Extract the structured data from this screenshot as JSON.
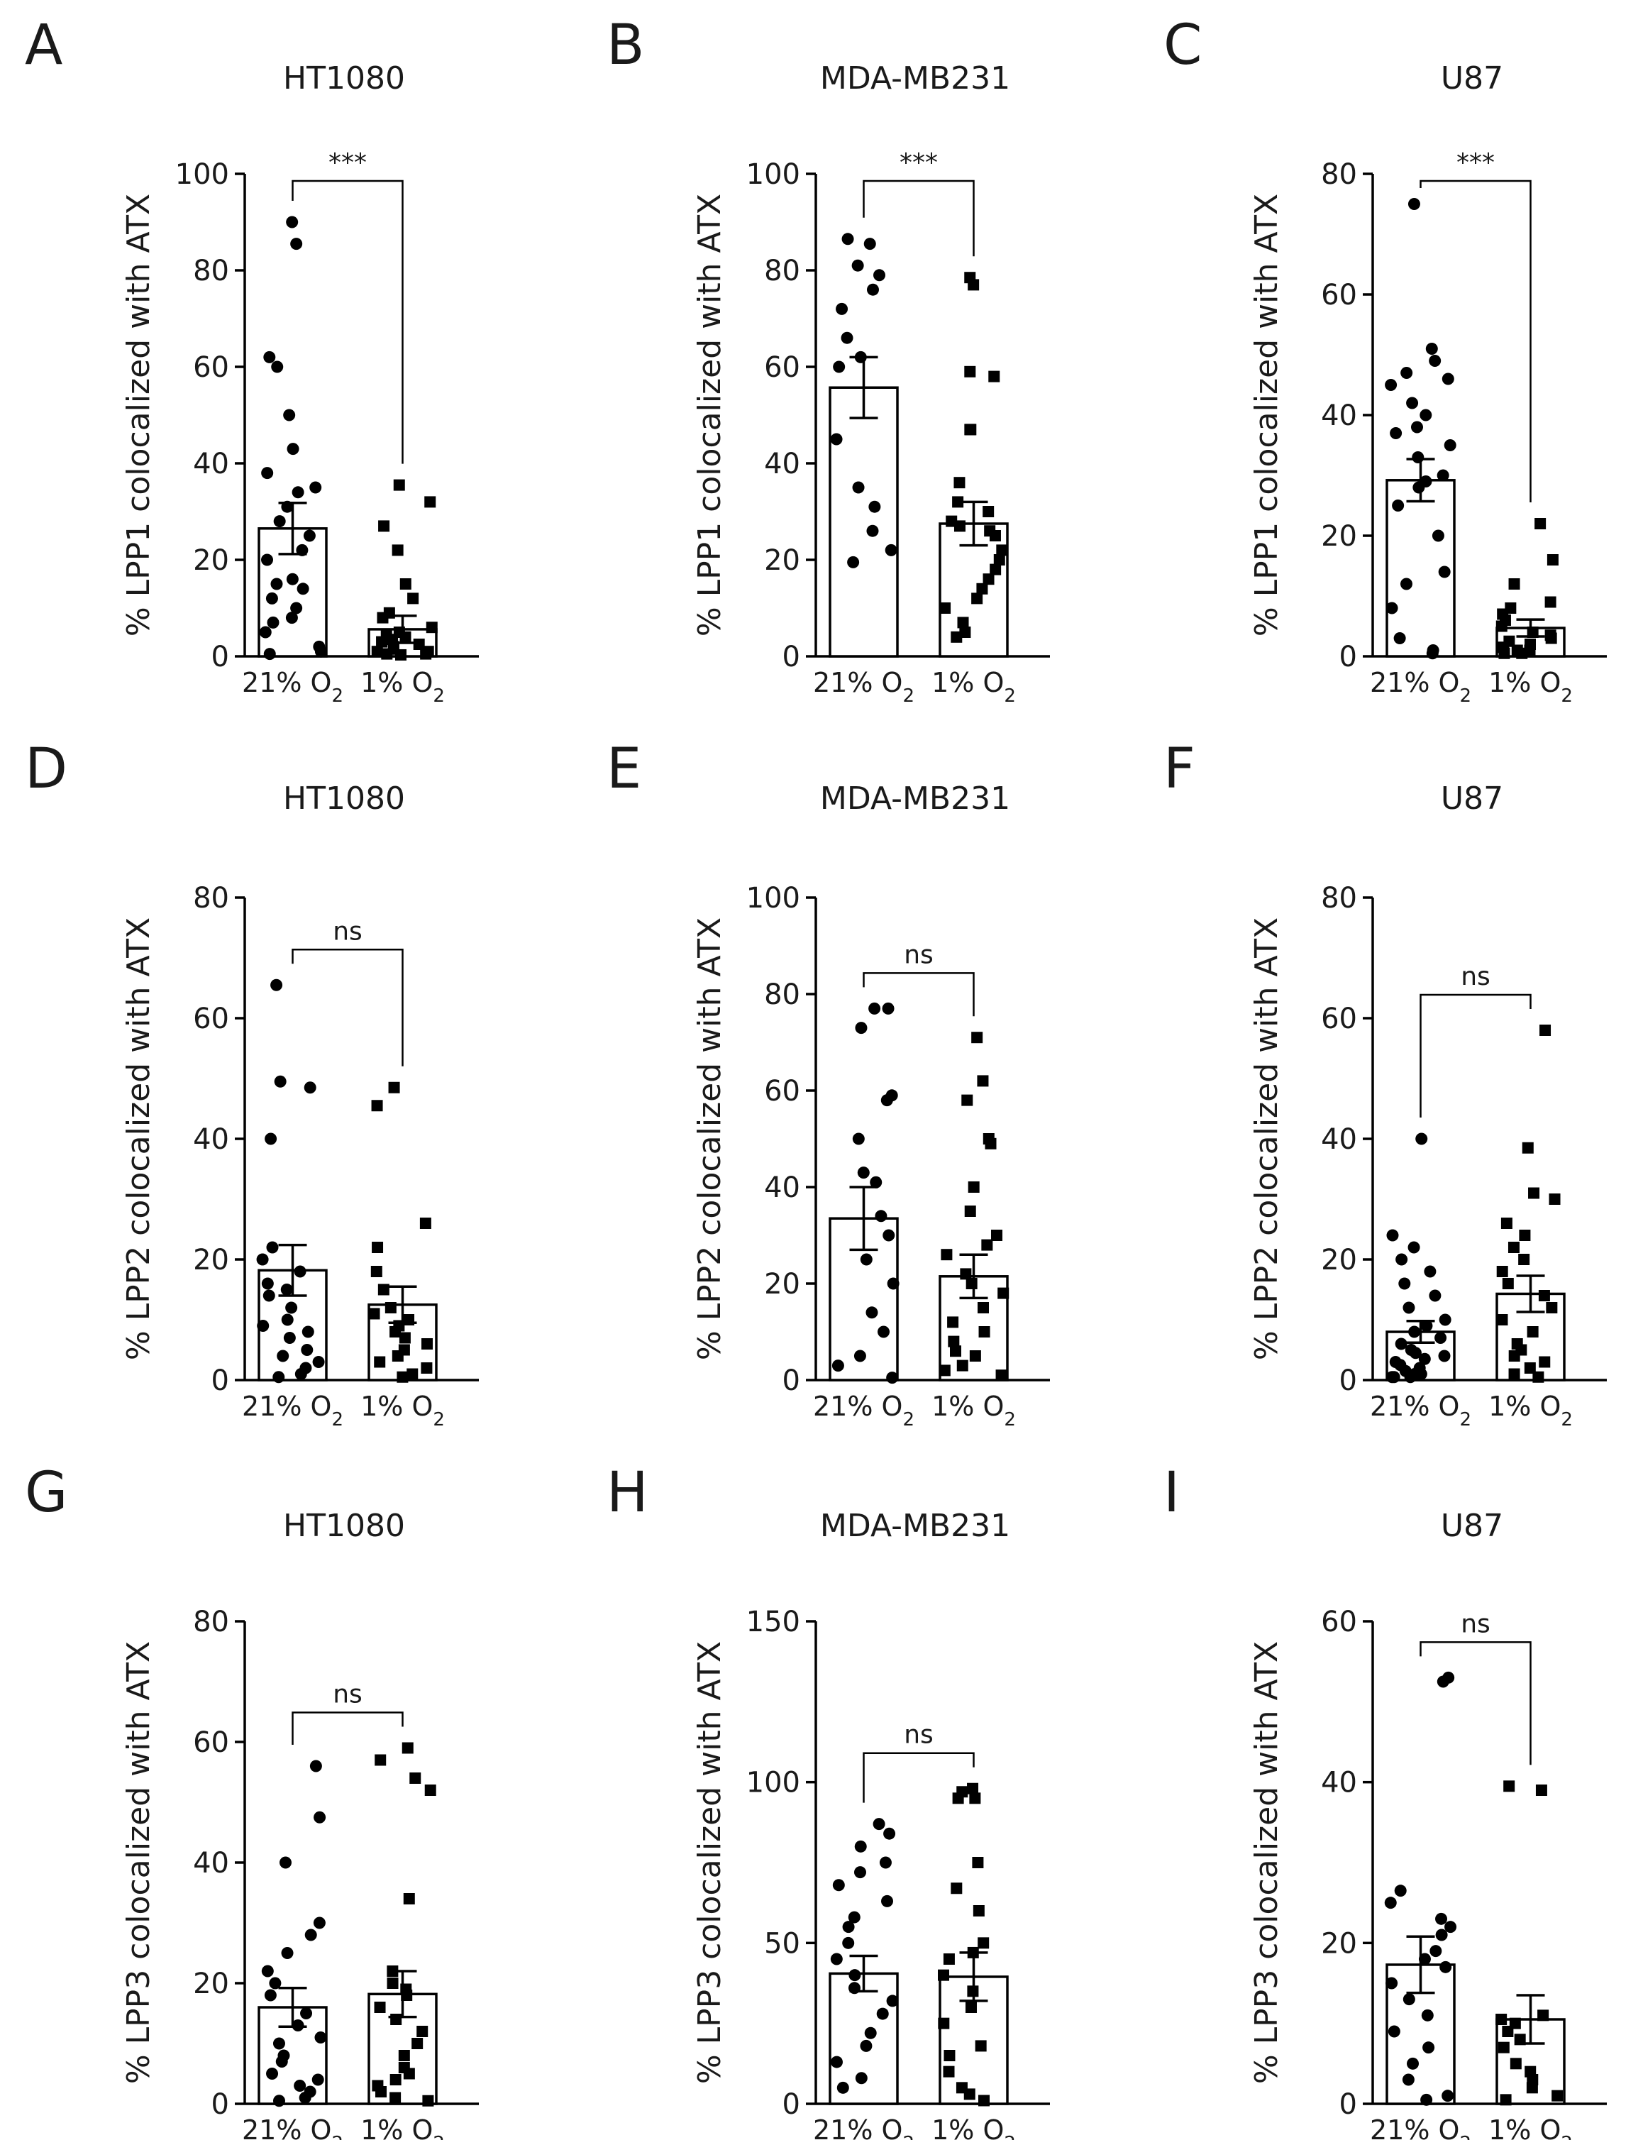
{
  "chart_data": [
    {
      "type": "bar",
      "panel": "A",
      "title": "HT1080",
      "ylabel": "% LPP1 colocalized with ATX",
      "ylim": [
        0,
        100
      ],
      "yticks": [
        0,
        20,
        40,
        60,
        80,
        100
      ],
      "categories": [
        {
          "main": "21% O",
          "sub": "2"
        },
        {
          "main": "1% O",
          "sub": "2"
        }
      ],
      "significance": "***",
      "series": [
        {
          "name": "21% O2",
          "marker": "circle",
          "mean": 26.5,
          "sem": 5.3,
          "points": [
            90,
            85.5,
            62,
            60,
            50,
            43,
            38,
            35,
            34,
            31,
            28,
            25,
            22,
            20,
            16,
            15,
            14,
            12,
            10,
            8,
            7,
            5,
            2,
            1,
            0.5
          ]
        },
        {
          "name": "1% O2",
          "marker": "square",
          "mean": 5.6,
          "sem": 2.8,
          "points": [
            35.5,
            32,
            27,
            22,
            15,
            12,
            9,
            8,
            6,
            5,
            4.5,
            4,
            3.5,
            3,
            2.5,
            2,
            1.5,
            1,
            1,
            0.5,
            0.5,
            0.3
          ]
        }
      ]
    },
    {
      "type": "bar",
      "panel": "B",
      "title": "MDA-MB231",
      "ylabel": "% LPP1 colocalized with ATX",
      "ylim": [
        0,
        100
      ],
      "yticks": [
        0,
        20,
        40,
        60,
        80,
        100
      ],
      "categories": [
        {
          "main": "21% O",
          "sub": "2"
        },
        {
          "main": "1% O",
          "sub": "2"
        }
      ],
      "significance": "***",
      "series": [
        {
          "name": "21% O2",
          "marker": "circle",
          "mean": 55.7,
          "sem": 6.3,
          "points": [
            86.5,
            85.5,
            81,
            79,
            76,
            72,
            66,
            62,
            60,
            45,
            35,
            31,
            26,
            22,
            19.5
          ]
        },
        {
          "name": "1% O2",
          "marker": "square",
          "mean": 27.5,
          "sem": 4.5,
          "points": [
            78.5,
            77,
            59,
            58,
            47,
            47,
            36,
            32,
            30,
            28,
            27,
            26,
            25,
            22,
            20,
            18,
            16,
            14,
            12,
            10,
            7,
            5,
            4
          ]
        }
      ]
    },
    {
      "type": "bar",
      "panel": "C",
      "title": "U87",
      "ylabel": "% LPP1 colocalized with ATX",
      "ylim": [
        0,
        80
      ],
      "yticks": [
        0,
        20,
        40,
        60,
        80
      ],
      "categories": [
        {
          "main": "21% O",
          "sub": "2"
        },
        {
          "main": "1% O",
          "sub": "2"
        }
      ],
      "significance": "***",
      "series": [
        {
          "name": "21% O2",
          "marker": "circle",
          "mean": 29.2,
          "sem": 3.5,
          "points": [
            75,
            51,
            49,
            47,
            46,
            45,
            42,
            40,
            38,
            37,
            35,
            33,
            30,
            29,
            28,
            25,
            20,
            14,
            12,
            8,
            3,
            1,
            0.5
          ]
        },
        {
          "name": "1% O2",
          "marker": "square",
          "mean": 4.7,
          "sem": 1.4,
          "points": [
            22,
            16,
            12,
            9,
            8,
            7,
            6,
            5,
            4,
            3.5,
            3,
            2.5,
            2,
            1.5,
            1,
            1,
            0.5,
            0.5
          ]
        }
      ]
    },
    {
      "type": "bar",
      "panel": "D",
      "title": "HT1080",
      "ylabel": "% LPP2 colocalized with ATX",
      "ylim": [
        0,
        80
      ],
      "yticks": [
        0,
        20,
        40,
        60,
        80
      ],
      "categories": [
        {
          "main": "21% O",
          "sub": "2"
        },
        {
          "main": "1% O",
          "sub": "2"
        }
      ],
      "significance": "ns",
      "series": [
        {
          "name": "21% O2",
          "marker": "circle",
          "mean": 18.2,
          "sem": 4.2,
          "points": [
            65.5,
            49.5,
            48.5,
            40,
            22,
            20,
            18,
            16,
            15,
            14,
            12,
            10,
            9,
            8,
            7,
            5,
            4,
            3,
            2,
            1,
            0.5
          ]
        },
        {
          "name": "1% O2",
          "marker": "square",
          "mean": 12.5,
          "sem": 3.0,
          "points": [
            48.5,
            45.5,
            26,
            22,
            18,
            15,
            12,
            11,
            10,
            9,
            8,
            7,
            6,
            5,
            4,
            3,
            2,
            1,
            0.5
          ]
        }
      ]
    },
    {
      "type": "bar",
      "panel": "E",
      "title": "MDA-MB231",
      "ylabel": "% LPP2 colocalized with ATX",
      "ylim": [
        0,
        100
      ],
      "yticks": [
        0,
        20,
        40,
        60,
        80,
        100
      ],
      "categories": [
        {
          "main": "21% O",
          "sub": "2"
        },
        {
          "main": "1% O",
          "sub": "2"
        }
      ],
      "significance": "ns",
      "series": [
        {
          "name": "21% O2",
          "marker": "circle",
          "mean": 33.5,
          "sem": 6.5,
          "points": [
            77,
            77,
            73,
            59,
            58,
            50,
            43,
            41,
            34,
            30,
            25,
            20,
            14,
            10,
            5,
            3,
            0.5
          ]
        },
        {
          "name": "1% O2",
          "marker": "square",
          "mean": 21.5,
          "sem": 4.5,
          "points": [
            71,
            62,
            58,
            50,
            49,
            40,
            35,
            30,
            28,
            26,
            22,
            20,
            18,
            15,
            12,
            10,
            8,
            6,
            5,
            3,
            2,
            1
          ]
        }
      ]
    },
    {
      "type": "bar",
      "panel": "F",
      "title": "U87",
      "ylabel": "% LPP2 colocalized with ATX",
      "ylim": [
        0,
        80
      ],
      "yticks": [
        0,
        20,
        40,
        60,
        80
      ],
      "categories": [
        {
          "main": "21% O",
          "sub": "2"
        },
        {
          "main": "1% O",
          "sub": "2"
        }
      ],
      "significance": "ns",
      "series": [
        {
          "name": "21% O2",
          "marker": "circle",
          "mean": 8.0,
          "sem": 1.8,
          "points": [
            40,
            24,
            22,
            20,
            18,
            16,
            14,
            12,
            10,
            9,
            8,
            7,
            6,
            5,
            4.5,
            4,
            3.5,
            3,
            2.5,
            2,
            1.5,
            1,
            1,
            0.5,
            0.5,
            0.5
          ]
        },
        {
          "name": "1% O2",
          "marker": "square",
          "mean": 14.3,
          "sem": 3.0,
          "points": [
            58,
            38.5,
            31,
            30,
            26,
            24,
            22,
            20,
            18,
            16,
            14,
            12,
            10,
            8,
            6,
            5,
            4,
            3,
            2,
            1,
            0.5
          ]
        }
      ]
    },
    {
      "type": "bar",
      "panel": "G",
      "title": "HT1080",
      "ylabel": "% LPP3 colocalized with ATX",
      "ylim": [
        0,
        80
      ],
      "yticks": [
        0,
        20,
        40,
        60,
        80
      ],
      "categories": [
        {
          "main": "21% O",
          "sub": "2"
        },
        {
          "main": "1% O",
          "sub": "2"
        }
      ],
      "significance": "ns",
      "series": [
        {
          "name": "21% O2",
          "marker": "circle",
          "mean": 16.0,
          "sem": 3.2,
          "points": [
            56,
            47.5,
            40,
            30,
            28,
            25,
            22,
            20,
            18,
            15,
            13,
            11,
            10,
            8,
            7,
            5,
            4,
            3,
            2,
            1,
            0.5
          ]
        },
        {
          "name": "1% O2",
          "marker": "square",
          "mean": 18.2,
          "sem": 3.8,
          "points": [
            59,
            57,
            54,
            52,
            34,
            22,
            20,
            19,
            18,
            16,
            14,
            12,
            10,
            8,
            6,
            5,
            4,
            3,
            2,
            1,
            0.5
          ]
        }
      ]
    },
    {
      "type": "bar",
      "panel": "H",
      "title": "MDA-MB231",
      "ylabel": "% LPP3 colocalized with ATX",
      "ylim": [
        0,
        150
      ],
      "yticks": [
        0,
        50,
        100,
        150
      ],
      "categories": [
        {
          "main": "21% O",
          "sub": "2"
        },
        {
          "main": "1% O",
          "sub": "2"
        }
      ],
      "significance": "ns",
      "series": [
        {
          "name": "21% O2",
          "marker": "circle",
          "mean": 40.5,
          "sem": 5.5,
          "points": [
            87,
            84,
            80,
            75,
            72,
            68,
            63,
            58,
            55,
            50,
            45,
            40,
            36,
            32,
            28,
            22,
            18,
            13,
            8,
            5
          ]
        },
        {
          "name": "1% O2",
          "marker": "square",
          "mean": 39.5,
          "sem": 7.5,
          "points": [
            98,
            97,
            95,
            95,
            75,
            67,
            60,
            50,
            47,
            45,
            40,
            35,
            30,
            25,
            18,
            15,
            10,
            5,
            3,
            1
          ]
        }
      ]
    },
    {
      "type": "bar",
      "panel": "I",
      "title": "U87",
      "ylabel": "% LPP3 colocalized with ATX",
      "ylim": [
        0,
        60
      ],
      "yticks": [
        0,
        20,
        40,
        60
      ],
      "categories": [
        {
          "main": "21% O",
          "sub": "2"
        },
        {
          "main": "1% O",
          "sub": "2"
        }
      ],
      "significance": "ns",
      "series": [
        {
          "name": "21% O2",
          "marker": "circle",
          "mean": 17.3,
          "sem": 3.5,
          "points": [
            53,
            52.5,
            26.5,
            25,
            23,
            22,
            21,
            19,
            18,
            17,
            15,
            13,
            11,
            9,
            7,
            5,
            3,
            1,
            0.5
          ]
        },
        {
          "name": "1% O2",
          "marker": "square",
          "mean": 10.5,
          "sem": 3.0,
          "points": [
            39.5,
            39,
            11,
            10.5,
            10,
            9,
            8,
            7,
            5,
            4,
            3,
            2,
            1,
            0.5
          ]
        }
      ]
    }
  ]
}
